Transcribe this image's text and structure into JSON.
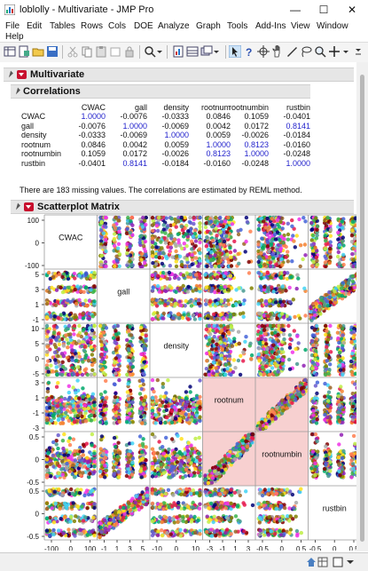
{
  "window": {
    "title": "loblolly - Multivariate - JMP Pro",
    "minimize": "—",
    "maximize": "☐",
    "close": "✕"
  },
  "menu": [
    "File",
    "Edit",
    "Tables",
    "Rows",
    "Cols",
    "DOE",
    "Analyze",
    "Graph",
    "Tools",
    "Add-Ins",
    "View",
    "Window",
    "Help"
  ],
  "report": {
    "multivariate_title": "Multivariate",
    "correlations_title": "Correlations",
    "columns": [
      "CWAC",
      "gall",
      "density",
      "rootnum",
      "rootnumbin",
      "rustbin"
    ],
    "rows": [
      {
        "name": "CWAC",
        "values": [
          "1.0000",
          "-0.0076",
          "-0.0333",
          "0.0846",
          "0.1059",
          "-0.0401"
        ]
      },
      {
        "name": "gall",
        "values": [
          "-0.0076",
          "1.0000",
          "-0.0069",
          "0.0042",
          "0.0172",
          "0.8141"
        ]
      },
      {
        "name": "density",
        "values": [
          "-0.0333",
          "-0.0069",
          "1.0000",
          "0.0059",
          "-0.0026",
          "-0.0184"
        ]
      },
      {
        "name": "rootnum",
        "values": [
          "0.0846",
          "0.0042",
          "0.0059",
          "1.0000",
          "0.8123",
          "-0.0160"
        ]
      },
      {
        "name": "rootnumbin",
        "values": [
          "0.1059",
          "0.0172",
          "-0.0026",
          "0.8123",
          "1.0000",
          "-0.0248"
        ]
      },
      {
        "name": "rustbin",
        "values": [
          "-0.0401",
          "0.8141",
          "-0.0184",
          "-0.0160",
          "-0.0248",
          "1.0000"
        ]
      }
    ],
    "note": "There are 183 missing values. The correlations are estimated by REML method.",
    "scatterplot_title": "Scatterplot Matrix"
  },
  "chart_data": {
    "type": "scatter",
    "title": "Scatterplot Matrix",
    "variables": [
      "CWAC",
      "gall",
      "density",
      "rootnum",
      "rootnumbin",
      "rustbin"
    ],
    "highlighted_correlation": [
      "rootnum",
      "rootnumbin"
    ],
    "highlight_color": "#f7d0d0",
    "y_ticks": {
      "CWAC": [
        "100",
        "0",
        "-100"
      ],
      "gall": [
        "5",
        "3",
        "1",
        "-1"
      ],
      "density": [
        "10",
        "5",
        "0",
        "-5"
      ],
      "rootnum": [
        "3",
        "1",
        "-1",
        "-3"
      ],
      "rootnumbin": [
        "0.5",
        "0",
        "-0.5"
      ],
      "rustbin": [
        "0.5",
        "0",
        "-0.5"
      ]
    },
    "x_ticks": {
      "CWAC": [
        "-100",
        "0",
        "100"
      ],
      "gall": [
        "-1",
        "1",
        "3",
        "5"
      ],
      "density": [
        "-10",
        "0",
        "10"
      ],
      "rootnum": [
        "-3",
        "-1",
        "1",
        "3"
      ],
      "rootnumbin": [
        "-0.5",
        "0",
        "0.5"
      ],
      "rustbin": [
        "-0.5",
        "0",
        "0.5"
      ]
    }
  },
  "status": {
    "icons": [
      "home-icon",
      "grid-icon",
      "checkbox-icon",
      "dropdown-icon"
    ]
  }
}
